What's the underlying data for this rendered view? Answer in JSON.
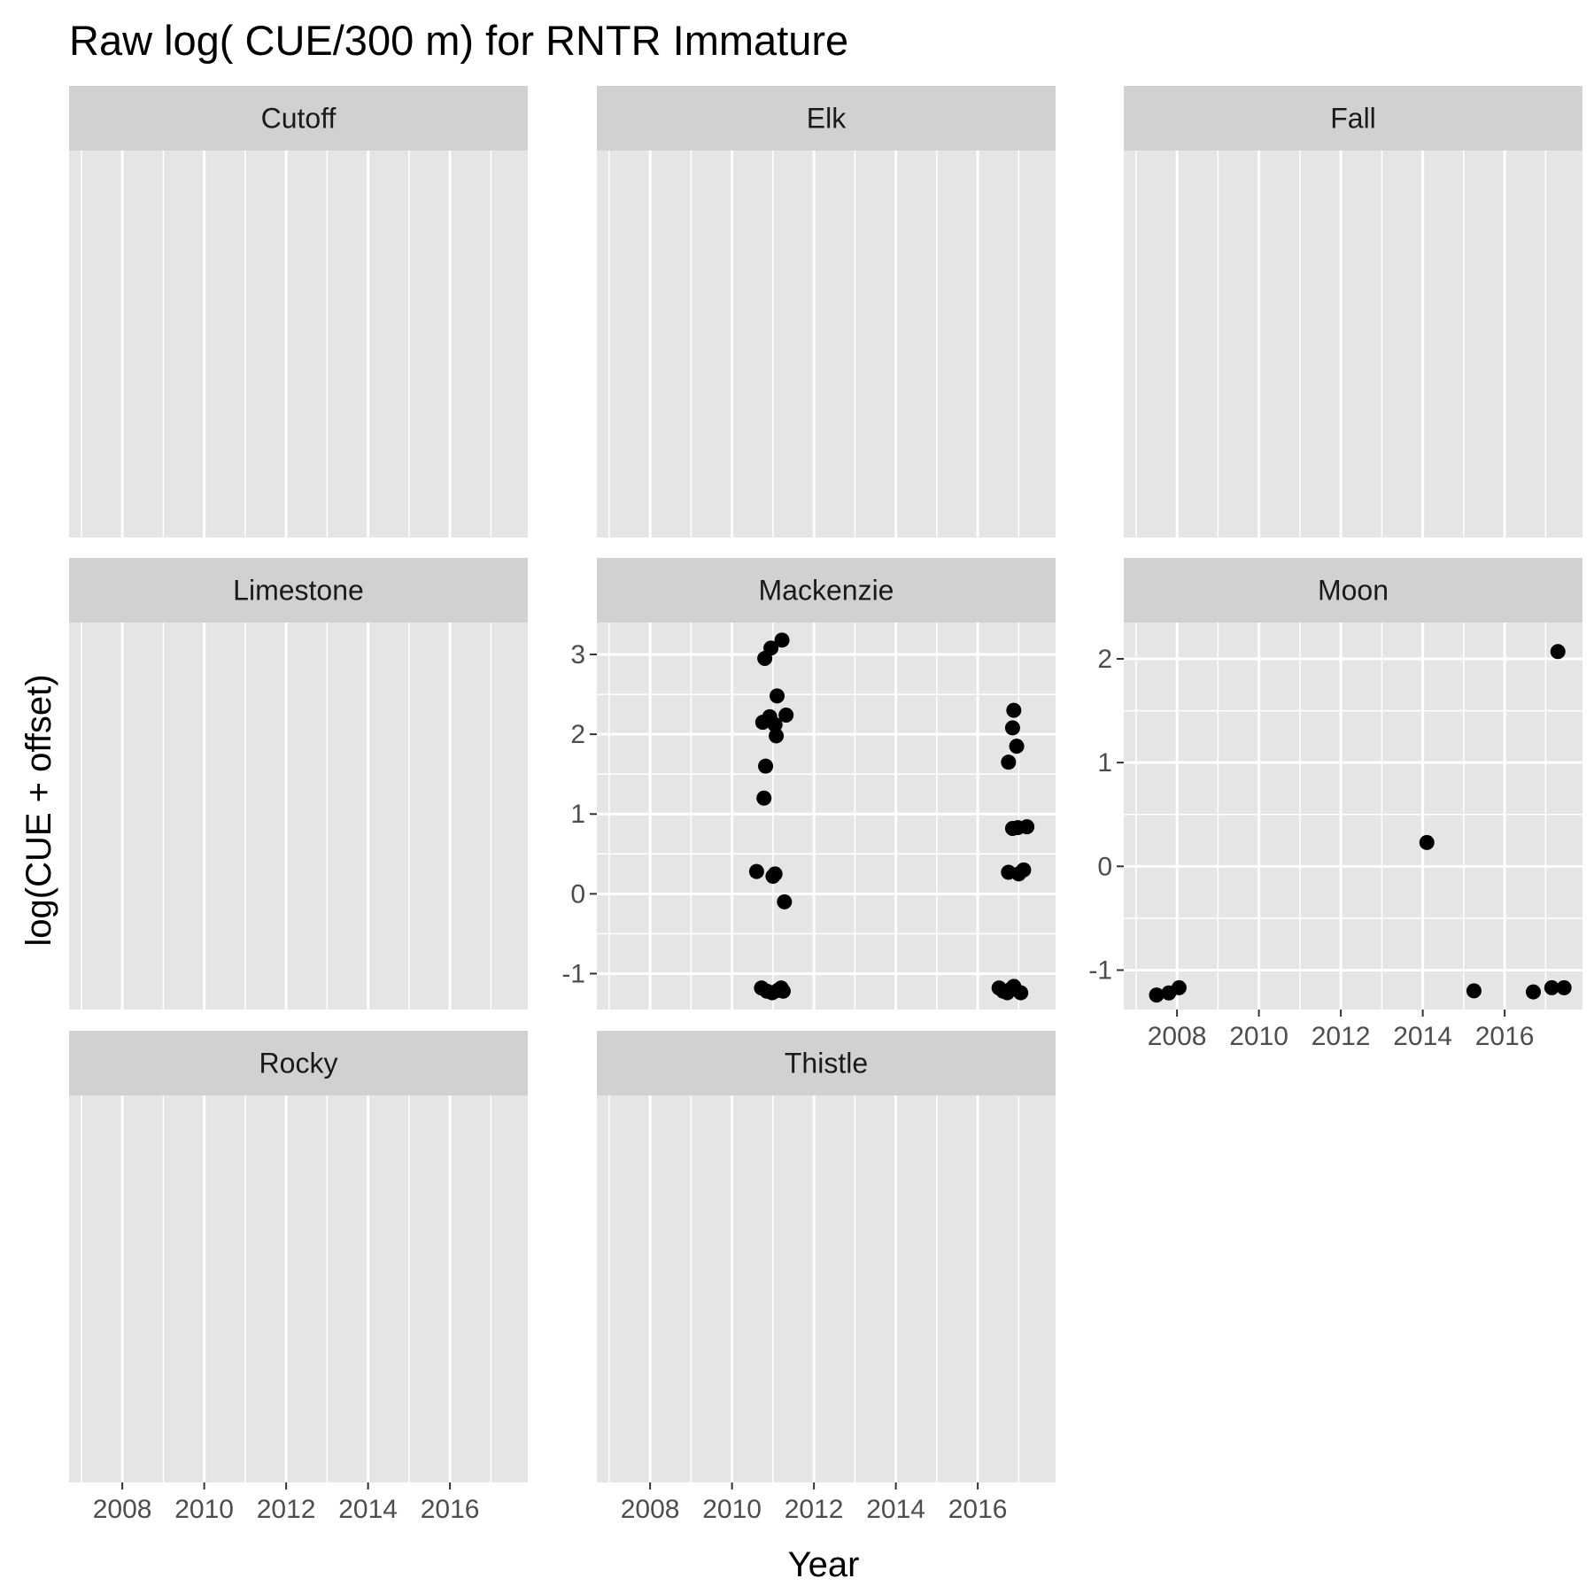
{
  "chart_data": {
    "type": "scatter",
    "layout": "facet_wrap",
    "title": "Raw log( CUE/300 m) for RNTR Immature",
    "xlabel": "Year",
    "ylabel": "log(CUE + offset)",
    "x_range": [
      2006.7,
      2017.9
    ],
    "x_ticks": [
      2008,
      2010,
      2012,
      2014,
      2016
    ],
    "x_tick_labels": [
      "2008",
      "2010",
      "2012",
      "2014",
      "2016"
    ],
    "grid": true,
    "panel_background": "#e5e5e5",
    "strip_background": "#d1d1d1",
    "point_color": "#000000",
    "rows": [
      [
        {
          "name": "Cutoff",
          "points": []
        },
        {
          "name": "Elk",
          "points": []
        },
        {
          "name": "Fall",
          "points": []
        }
      ],
      [
        {
          "name": "Limestone",
          "points": []
        },
        {
          "name": "Mackenzie",
          "y_range": [
            -1.45,
            3.4
          ],
          "y_ticks": [
            -1,
            0,
            1,
            2,
            3
          ],
          "y_tick_labels": [
            "-1",
            "0",
            "1",
            "2",
            "3"
          ],
          "points": [
            {
              "x": 2010.8,
              "y": 2.95
            },
            {
              "x": 2010.95,
              "y": 3.08
            },
            {
              "x": 2011.22,
              "y": 3.18
            },
            {
              "x": 2011.1,
              "y": 2.48
            },
            {
              "x": 2010.75,
              "y": 2.15
            },
            {
              "x": 2010.92,
              "y": 2.22
            },
            {
              "x": 2011.05,
              "y": 2.12
            },
            {
              "x": 2011.08,
              "y": 1.98
            },
            {
              "x": 2011.32,
              "y": 2.24
            },
            {
              "x": 2010.82,
              "y": 1.6
            },
            {
              "x": 2010.78,
              "y": 1.2
            },
            {
              "x": 2010.6,
              "y": 0.28
            },
            {
              "x": 2011.0,
              "y": 0.22
            },
            {
              "x": 2011.05,
              "y": 0.25
            },
            {
              "x": 2011.28,
              "y": -0.1
            },
            {
              "x": 2010.72,
              "y": -1.18
            },
            {
              "x": 2010.85,
              "y": -1.22
            },
            {
              "x": 2010.98,
              "y": -1.24
            },
            {
              "x": 2011.12,
              "y": -1.21
            },
            {
              "x": 2011.2,
              "y": -1.18
            },
            {
              "x": 2011.25,
              "y": -1.22
            },
            {
              "x": 2016.88,
              "y": 2.3
            },
            {
              "x": 2016.85,
              "y": 2.08
            },
            {
              "x": 2016.95,
              "y": 1.85
            },
            {
              "x": 2016.75,
              "y": 1.65
            },
            {
              "x": 2016.85,
              "y": 0.82
            },
            {
              "x": 2016.98,
              "y": 0.83
            },
            {
              "x": 2017.2,
              "y": 0.84
            },
            {
              "x": 2016.75,
              "y": 0.27
            },
            {
              "x": 2017.0,
              "y": 0.25
            },
            {
              "x": 2017.12,
              "y": 0.3
            },
            {
              "x": 2016.52,
              "y": -1.18
            },
            {
              "x": 2016.62,
              "y": -1.22
            },
            {
              "x": 2016.72,
              "y": -1.24
            },
            {
              "x": 2016.82,
              "y": -1.19
            },
            {
              "x": 2016.88,
              "y": -1.16
            },
            {
              "x": 2017.05,
              "y": -1.24
            }
          ]
        },
        {
          "name": "Moon",
          "y_range": [
            -1.38,
            2.35
          ],
          "y_ticks": [
            -1,
            0,
            1,
            2
          ],
          "y_tick_labels": [
            "-1",
            "0",
            "1",
            "2"
          ],
          "points": [
            {
              "x": 2007.5,
              "y": -1.24
            },
            {
              "x": 2007.8,
              "y": -1.22
            },
            {
              "x": 2008.05,
              "y": -1.17
            },
            {
              "x": 2014.1,
              "y": 0.23
            },
            {
              "x": 2015.25,
              "y": -1.2
            },
            {
              "x": 2016.7,
              "y": -1.21
            },
            {
              "x": 2017.15,
              "y": -1.17
            },
            {
              "x": 2017.45,
              "y": -1.17
            },
            {
              "x": 2017.3,
              "y": 2.07
            }
          ]
        }
      ],
      [
        {
          "name": "Rocky",
          "points": []
        },
        {
          "name": "Thistle",
          "points": []
        }
      ]
    ]
  }
}
